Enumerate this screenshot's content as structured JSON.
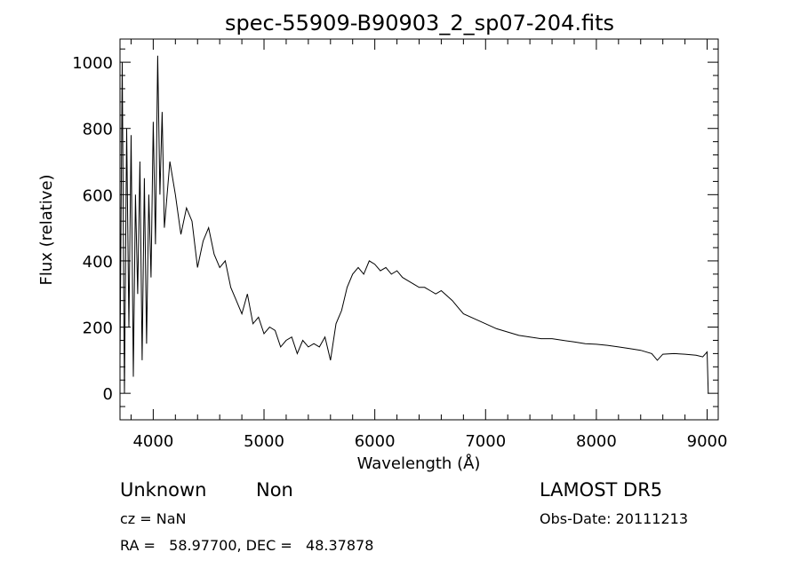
{
  "chart_data": {
    "type": "line",
    "title": "spec-55909-B90903_2_sp07-204.fits",
    "xlabel": "Wavelength (Å)",
    "ylabel": "Flux (relative)",
    "xlim": [
      3700,
      9100
    ],
    "ylim": [
      -80,
      1070
    ],
    "x_ticks": [
      4000,
      5000,
      6000,
      7000,
      8000,
      9000
    ],
    "y_ticks": [
      0,
      200,
      400,
      600,
      800,
      1000
    ],
    "grid": false,
    "line_color": "#000000",
    "series": [
      {
        "x": [
          3700,
          3720,
          3740,
          3760,
          3780,
          3800,
          3820,
          3840,
          3860,
          3880,
          3900,
          3920,
          3940,
          3960,
          3980,
          4000,
          4020,
          4040,
          4060,
          4080,
          4100,
          4150,
          4200,
          4250,
          4300,
          4350,
          4400,
          4450,
          4500,
          4550,
          4600,
          4650,
          4700,
          4750,
          4800,
          4850,
          4900,
          4950,
          5000,
          5050,
          5100,
          5150,
          5200,
          5250,
          5300,
          5350,
          5400,
          5450,
          5500,
          5550,
          5600,
          5650,
          5700,
          5750,
          5800,
          5850,
          5900,
          5950,
          6000,
          6050,
          6100,
          6150,
          6200,
          6250,
          6300,
          6350,
          6400,
          6450,
          6500,
          6550,
          6600,
          6650,
          6700,
          6750,
          6800,
          6900,
          7000,
          7100,
          7200,
          7300,
          7400,
          7500,
          7600,
          7700,
          7800,
          7900,
          8000,
          8100,
          8200,
          8300,
          8400,
          8500,
          8550,
          8600,
          8700,
          8800,
          8900,
          8960,
          9000,
          9010
        ],
        "y": [
          100,
          1000,
          0,
          800,
          200,
          780,
          50,
          600,
          300,
          700,
          100,
          650,
          150,
          600,
          350,
          820,
          450,
          1020,
          600,
          850,
          500,
          700,
          600,
          480,
          560,
          520,
          380,
          460,
          500,
          420,
          380,
          400,
          320,
          280,
          240,
          300,
          210,
          230,
          180,
          200,
          190,
          140,
          160,
          170,
          120,
          160,
          140,
          150,
          140,
          170,
          100,
          210,
          250,
          320,
          360,
          380,
          360,
          400,
          390,
          370,
          380,
          360,
          370,
          350,
          340,
          330,
          320,
          320,
          310,
          300,
          310,
          295,
          280,
          260,
          240,
          225,
          210,
          195,
          185,
          175,
          170,
          165,
          165,
          160,
          155,
          150,
          148,
          145,
          140,
          135,
          130,
          120,
          100,
          118,
          120,
          118,
          115,
          110,
          125,
          0
        ]
      }
    ],
    "annotations": {
      "object_class": "Unknown",
      "subclass": "Non",
      "cz": "cz = NaN",
      "coords": "RA =   58.97700, DEC =   48.37878",
      "survey": "LAMOST DR5",
      "obs_date": "Obs-Date: 20111213"
    }
  }
}
